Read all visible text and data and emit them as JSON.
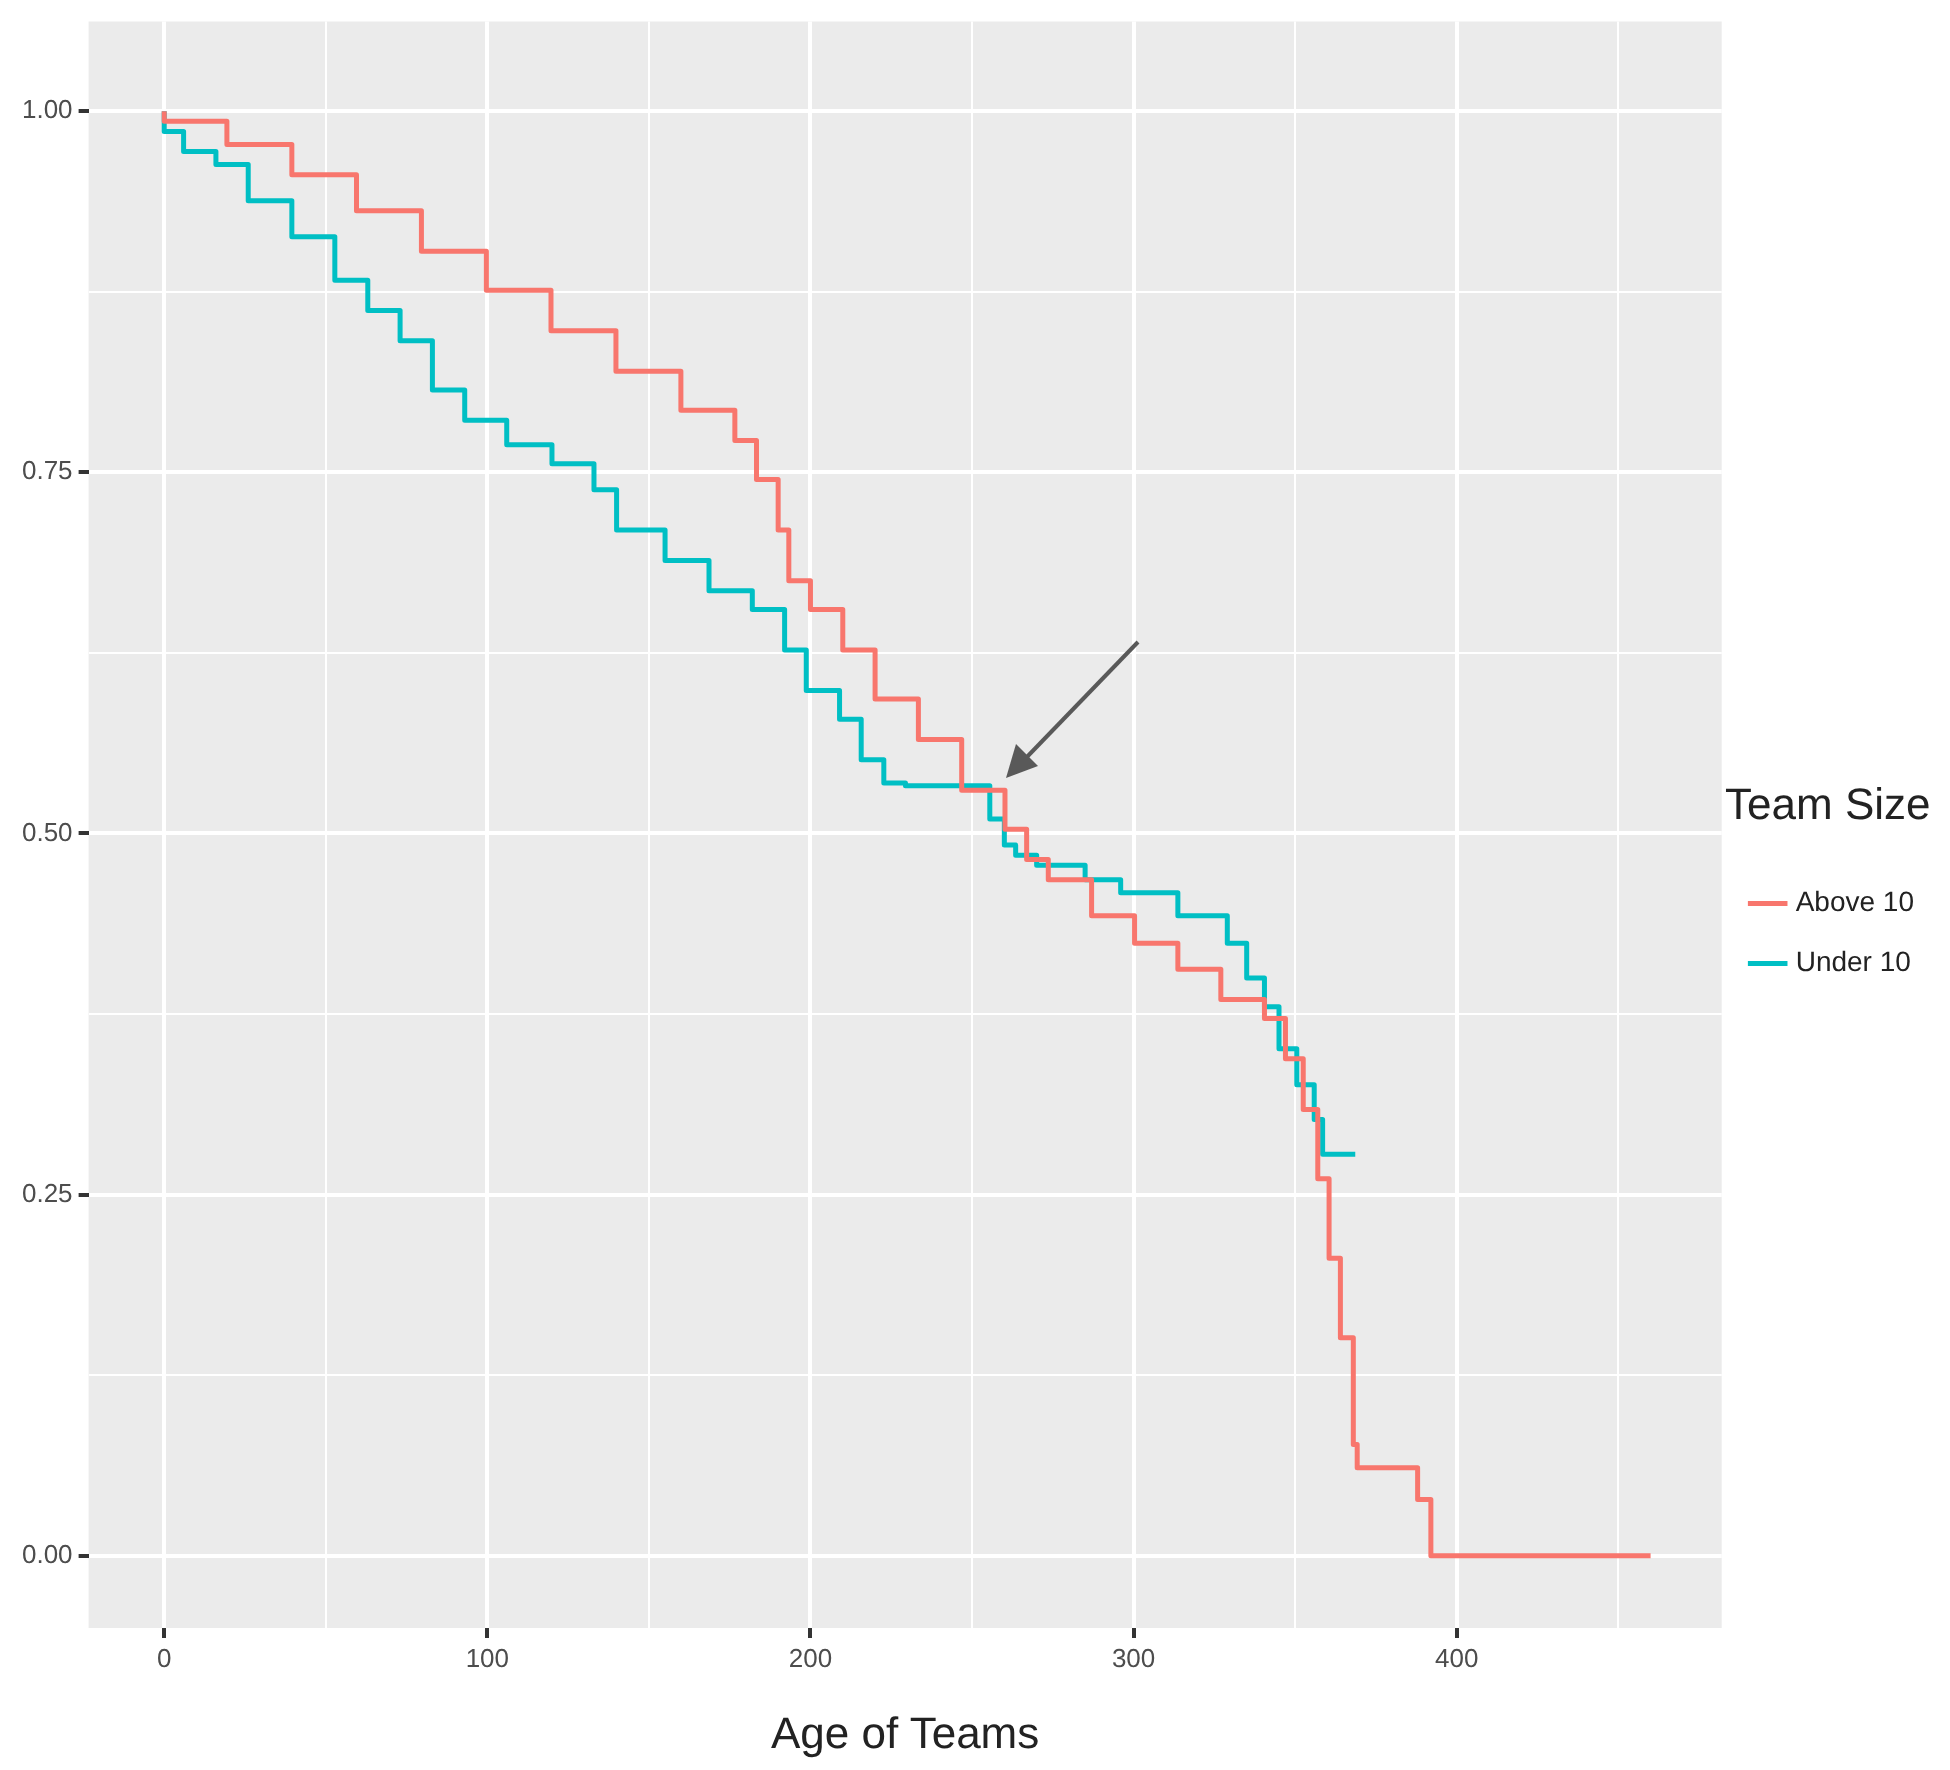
{
  "chart_data": {
    "type": "step",
    "xlabel": "Age of Teams",
    "legend_title": "Team Size",
    "legend": "right",
    "grid": true,
    "xlim": [
      -23.4,
      482
    ],
    "ylim": [
      -0.05,
      1.062
    ],
    "xticks": [
      0,
      {
        "value": 50,
        "label": null
      },
      100,
      {
        "value": 150,
        "label": null
      },
      200,
      {
        "value": 250,
        "label": null
      },
      300,
      {
        "value": 350,
        "label": null
      },
      400,
      {
        "value": 450,
        "label": null
      }
    ],
    "yticks": [
      {
        "value": 0,
        "label": "0.00"
      },
      {
        "value": 0.125,
        "label": null
      },
      {
        "value": 0.25,
        "label": "0.25"
      },
      {
        "value": 0.375,
        "label": null
      },
      {
        "value": 0.5,
        "label": "0.50"
      },
      {
        "value": 0.625,
        "label": null
      },
      {
        "value": 0.75,
        "label": "0.75"
      },
      {
        "value": 0.875,
        "label": null
      },
      {
        "value": 1,
        "label": "1.00"
      }
    ],
    "series": [
      {
        "name": "Above 10",
        "color": "#f8766d",
        "x": [
          0,
          19.4,
          39.5,
          59.5,
          79.6,
          99.7,
          119.7,
          139.8,
          159.9,
          176.6,
          183.3,
          190,
          193.3,
          200,
          210,
          220,
          233.4,
          246.8,
          260.2,
          266.9,
          273.6,
          287,
          300.3,
          313.7,
          327,
          340.5,
          347,
          352.5,
          357,
          360.5,
          364,
          368,
          369.2,
          387.9,
          392,
          460
        ],
        "values": [
          1,
          0.993,
          0.977,
          0.956,
          0.931,
          0.903,
          0.876,
          0.848,
          0.82,
          0.793,
          0.772,
          0.745,
          0.71,
          0.675,
          0.655,
          0.627,
          0.593,
          0.565,
          0.53,
          0.503,
          0.482,
          0.468,
          0.443,
          0.424,
          0.406,
          0.385,
          0.372,
          0.344,
          0.309,
          0.261,
          0.206,
          0.151,
          0.077,
          0.061,
          0.039,
          0
        ]
      },
      {
        "name": "Under 10",
        "color": "#00bfc4",
        "x": [
          0,
          6,
          16,
          26,
          39.5,
          52.8,
          63,
          73,
          83,
          93,
          106,
          120,
          133,
          140,
          155,
          168.6,
          182,
          192,
          198.7,
          209,
          215.7,
          222.7,
          229.4,
          255.5,
          260,
          263.5,
          270,
          285,
          296,
          313.7,
          329,
          335,
          340.5,
          345,
          350.5,
          355.9,
          358.5,
          360.5,
          368.6
        ],
        "values": [
          1,
          0.986,
          0.972,
          0.963,
          0.938,
          0.913,
          0.883,
          0.862,
          0.841,
          0.807,
          0.786,
          0.769,
          0.756,
          0.738,
          0.71,
          0.689,
          0.668,
          0.655,
          0.627,
          0.599,
          0.579,
          0.551,
          0.535,
          0.533,
          0.51,
          0.492,
          0.485,
          0.478,
          0.468,
          0.459,
          0.443,
          0.424,
          0.4,
          0.38,
          0.351,
          0.326,
          0.302,
          0.278,
          0.278
        ]
      }
    ]
  }
}
